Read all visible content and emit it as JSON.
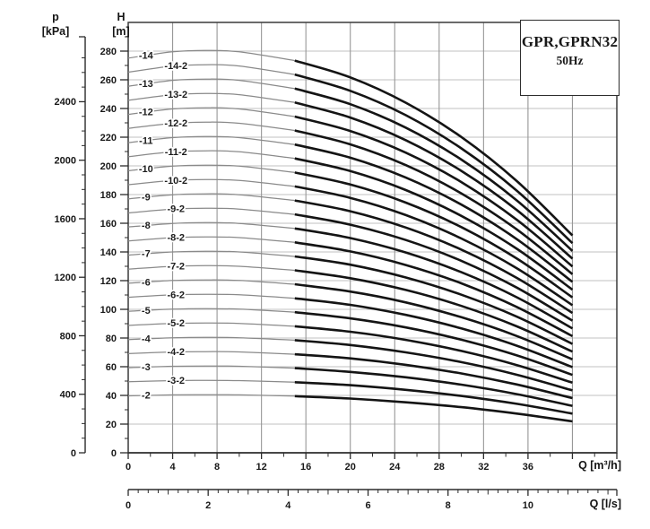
{
  "title_box": {
    "model": "GPR,GPRN32",
    "frequency": "50Hz"
  },
  "axes": {
    "pressure": {
      "title_line1": "p",
      "title_line2": "[kPa]",
      "unit": "kPa",
      "ticks": [
        0,
        400,
        800,
        1200,
        1600,
        2000,
        2400
      ],
      "minor_step": 100,
      "minor_max": 2800
    },
    "head": {
      "title_line1": "H",
      "title_line2": "[m]",
      "unit": "m",
      "ticks": [
        0,
        20,
        40,
        60,
        80,
        100,
        120,
        140,
        160,
        180,
        200,
        220,
        240,
        260,
        280
      ],
      "minor_step": 10,
      "range": [
        0,
        300
      ]
    },
    "flow_primary": {
      "label": "Q [m³/h]",
      "unit": "m³/h",
      "ticks": [
        0,
        4,
        8,
        12,
        16,
        20,
        24,
        28,
        32,
        36
      ],
      "unlabeled_ticks": [
        40,
        44
      ],
      "minor_step": 2,
      "range": [
        0,
        44
      ]
    },
    "flow_secondary": {
      "label": "Q [l/s]",
      "unit": "l/s",
      "ticks": [
        0,
        2,
        4,
        6,
        8,
        10
      ],
      "minor_step": 0.25,
      "range": [
        0,
        12.2
      ]
    }
  },
  "colors": {
    "grid_horizontal": "#c0c0c0",
    "grid_vertical": "#979797",
    "border": "#3a3a3a",
    "axis": "#2b2b2b",
    "curve_thin": "#8a8a8a",
    "curve_bold": "#141414",
    "text": "#181818"
  },
  "chart_data": {
    "type": "line",
    "title": "GPR,GPRN32",
    "subtitle": "50Hz",
    "xlabel": "Q [m³/h]",
    "xlabel_secondary": "Q [l/s]",
    "ylabel": "H [m]",
    "ylabel_secondary": "p [kPa]",
    "xlim_m3h": [
      0,
      44
    ],
    "ylim_m": [
      0,
      300
    ],
    "grid": true,
    "legend": "curve labels inline",
    "x_m3h": [
      0,
      4,
      7,
      10,
      15,
      20,
      25,
      30,
      35,
      40
    ],
    "bold_range_m3h": [
      15,
      40
    ],
    "series": [
      {
        "name": "-2",
        "label_q": 1.6,
        "h_m": [
          39.7,
          40.4,
          40.5,
          40.4,
          39.5,
          37.8,
          35.2,
          31.8,
          27.3,
          21.9
        ]
      },
      {
        "name": "-3-2",
        "label_q": 4.3,
        "h_m": [
          49.5,
          50.3,
          50.5,
          50.3,
          49.2,
          47.1,
          43.9,
          39.6,
          34.1,
          27.3
        ]
      },
      {
        "name": "-3",
        "label_q": 1.6,
        "h_m": [
          59.3,
          60.3,
          60.5,
          60.3,
          59.0,
          56.4,
          52.6,
          47.5,
          40.9,
          32.7
        ]
      },
      {
        "name": "-4-2",
        "label_q": 4.3,
        "h_m": [
          69.1,
          70.3,
          70.5,
          70.3,
          68.7,
          65.8,
          61.3,
          55.3,
          47.6,
          38.1
        ]
      },
      {
        "name": "-4",
        "label_q": 1.6,
        "h_m": [
          78.9,
          80.2,
          80.5,
          80.2,
          78.5,
          75.1,
          70.0,
          63.2,
          54.4,
          43.5
        ]
      },
      {
        "name": "-5-2",
        "label_q": 4.3,
        "h_m": [
          88.8,
          90.2,
          90.5,
          90.2,
          88.2,
          84.4,
          78.7,
          71.0,
          61.1,
          48.9
        ]
      },
      {
        "name": "-5",
        "label_q": 1.6,
        "h_m": [
          98.6,
          100.1,
          100.5,
          100.1,
          98.0,
          93.7,
          87.4,
          78.8,
          67.9,
          54.3
        ]
      },
      {
        "name": "-6-2",
        "label_q": 4.3,
        "h_m": [
          108.4,
          110.1,
          110.5,
          110.1,
          107.7,
          103.1,
          96.1,
          86.7,
          74.6,
          59.7
        ]
      },
      {
        "name": "-6",
        "label_q": 1.6,
        "h_m": [
          118.2,
          120.1,
          120.5,
          120.1,
          117.5,
          112.4,
          104.8,
          94.5,
          81.4,
          65.1
        ]
      },
      {
        "name": "-7-2",
        "label_q": 4.3,
        "h_m": [
          128.0,
          130.0,
          130.5,
          130.0,
          127.2,
          121.7,
          113.5,
          102.4,
          88.1,
          70.5
        ]
      },
      {
        "name": "-7",
        "label_q": 1.6,
        "h_m": [
          137.8,
          140.0,
          140.5,
          140.0,
          136.9,
          131.1,
          122.2,
          110.2,
          94.9,
          75.9
        ]
      },
      {
        "name": "-8-2",
        "label_q": 4.3,
        "h_m": [
          147.6,
          150.0,
          150.5,
          150.0,
          146.7,
          140.4,
          130.9,
          118.1,
          101.6,
          81.3
        ]
      },
      {
        "name": "-8",
        "label_q": 1.6,
        "h_m": [
          157.4,
          159.9,
          160.5,
          159.9,
          156.4,
          149.7,
          139.6,
          125.9,
          108.4,
          86.7
        ]
      },
      {
        "name": "-9-2",
        "label_q": 4.3,
        "h_m": [
          167.2,
          169.9,
          170.5,
          169.9,
          166.2,
          159.0,
          148.3,
          133.8,
          115.1,
          92.1
        ]
      },
      {
        "name": "-9",
        "label_q": 1.6,
        "h_m": [
          177.0,
          179.9,
          180.5,
          179.9,
          175.9,
          168.4,
          157.0,
          141.6,
          121.9,
          97.5
        ]
      },
      {
        "name": "-10-2",
        "label_q": 4.3,
        "h_m": [
          186.8,
          189.8,
          190.5,
          189.8,
          185.7,
          177.7,
          165.7,
          149.4,
          128.6,
          102.9
        ]
      },
      {
        "name": "-10",
        "label_q": 1.6,
        "h_m": [
          196.6,
          199.8,
          200.5,
          199.8,
          195.4,
          187.0,
          174.4,
          157.3,
          135.4,
          108.3
        ]
      },
      {
        "name": "-11-2",
        "label_q": 4.3,
        "h_m": [
          206.4,
          209.8,
          210.5,
          209.8,
          205.2,
          196.4,
          183.1,
          165.1,
          142.2,
          113.7
        ]
      },
      {
        "name": "-11",
        "label_q": 1.6,
        "h_m": [
          216.2,
          219.7,
          220.5,
          219.7,
          214.9,
          205.7,
          191.8,
          173.0,
          148.9,
          119.1
        ]
      },
      {
        "name": "-12-2",
        "label_q": 4.3,
        "h_m": [
          226.1,
          229.7,
          230.5,
          229.7,
          224.7,
          215.0,
          200.5,
          180.8,
          155.7,
          124.5
        ]
      },
      {
        "name": "-12",
        "label_q": 1.6,
        "h_m": [
          235.9,
          239.7,
          240.5,
          239.7,
          234.4,
          224.3,
          209.2,
          188.7,
          162.4,
          129.9
        ]
      },
      {
        "name": "-13-2",
        "label_q": 4.3,
        "h_m": [
          245.7,
          249.6,
          250.5,
          249.6,
          244.2,
          233.7,
          217.9,
          196.5,
          169.2,
          135.3
        ]
      },
      {
        "name": "-13",
        "label_q": 1.6,
        "h_m": [
          255.5,
          259.6,
          260.5,
          259.6,
          253.9,
          243.0,
          226.6,
          204.4,
          175.9,
          140.7
        ]
      },
      {
        "name": "-14-2",
        "label_q": 4.3,
        "h_m": [
          265.3,
          269.6,
          270.5,
          269.6,
          263.7,
          252.3,
          235.3,
          212.2,
          182.7,
          146.1
        ]
      },
      {
        "name": "-14",
        "label_q": 1.6,
        "h_m": [
          275.1,
          279.5,
          280.5,
          279.5,
          273.4,
          261.7,
          244.0,
          220.1,
          189.4,
          151.5
        ]
      }
    ]
  }
}
